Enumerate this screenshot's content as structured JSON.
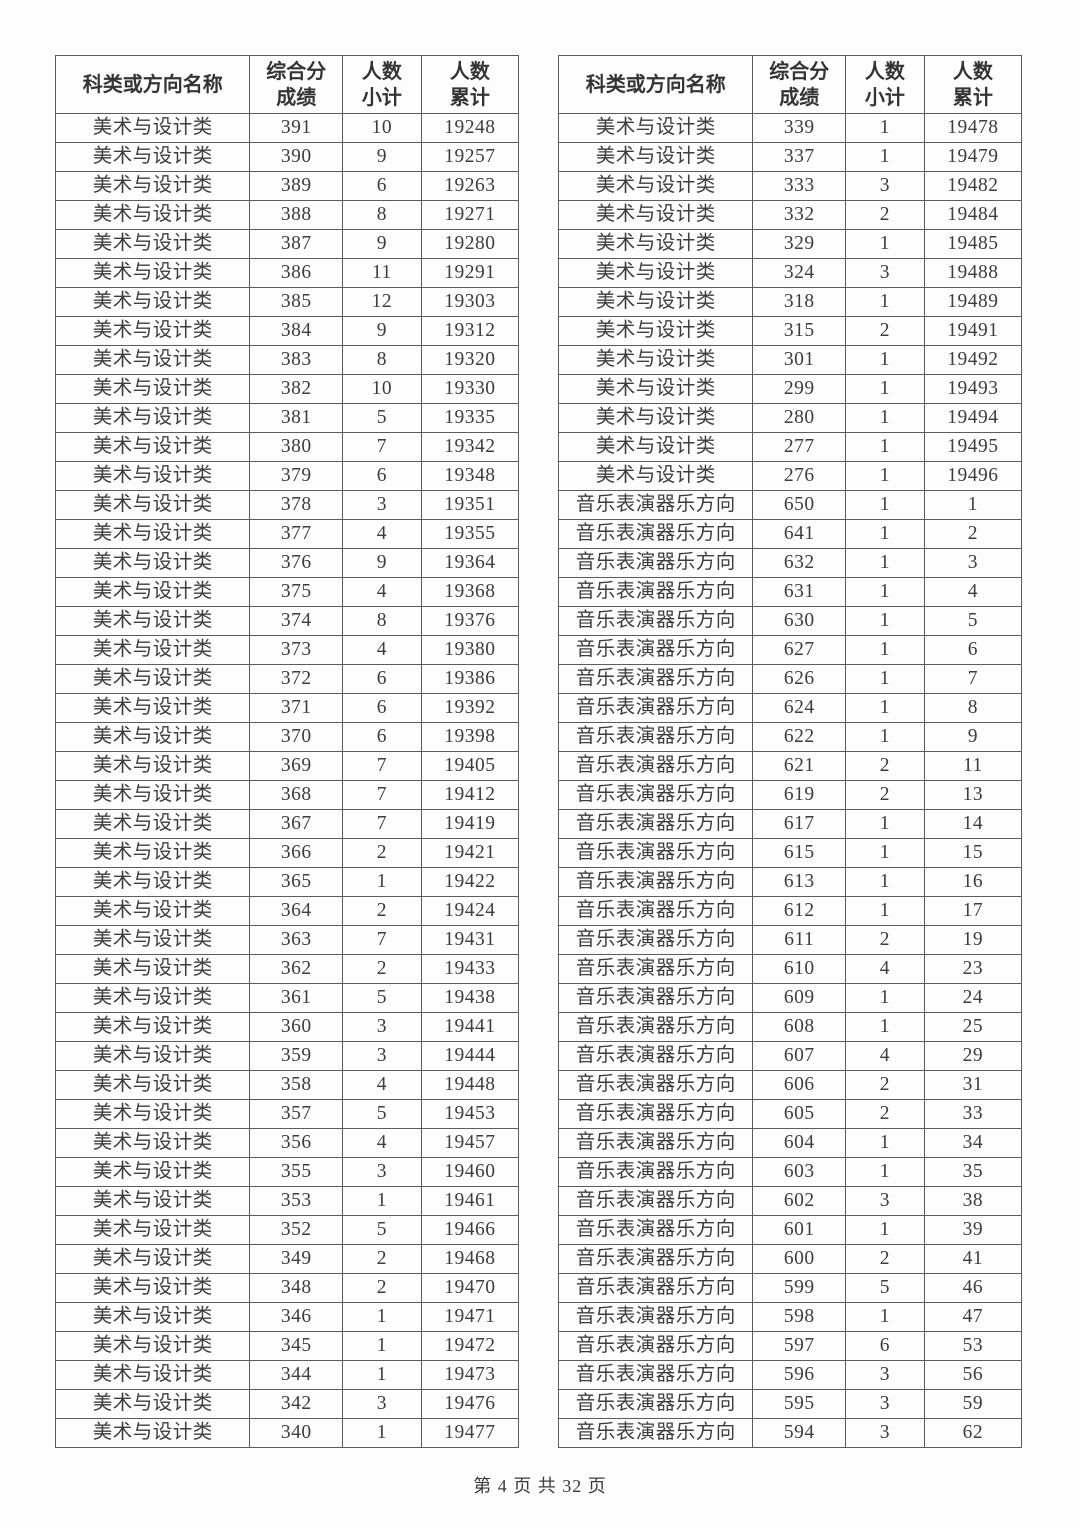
{
  "table_header": {
    "category": "科类或方向名称",
    "score_line1": "综合分",
    "score_line2": "成绩",
    "subtotal_line1": "人数",
    "subtotal_line2": "小计",
    "cumulative_line1": "人数",
    "cumulative_line2": "累计"
  },
  "tables": {
    "left": {
      "rows": [
        [
          "美术与设计类",
          "391",
          "10",
          "19248"
        ],
        [
          "美术与设计类",
          "390",
          "9",
          "19257"
        ],
        [
          "美术与设计类",
          "389",
          "6",
          "19263"
        ],
        [
          "美术与设计类",
          "388",
          "8",
          "19271"
        ],
        [
          "美术与设计类",
          "387",
          "9",
          "19280"
        ],
        [
          "美术与设计类",
          "386",
          "11",
          "19291"
        ],
        [
          "美术与设计类",
          "385",
          "12",
          "19303"
        ],
        [
          "美术与设计类",
          "384",
          "9",
          "19312"
        ],
        [
          "美术与设计类",
          "383",
          "8",
          "19320"
        ],
        [
          "美术与设计类",
          "382",
          "10",
          "19330"
        ],
        [
          "美术与设计类",
          "381",
          "5",
          "19335"
        ],
        [
          "美术与设计类",
          "380",
          "7",
          "19342"
        ],
        [
          "美术与设计类",
          "379",
          "6",
          "19348"
        ],
        [
          "美术与设计类",
          "378",
          "3",
          "19351"
        ],
        [
          "美术与设计类",
          "377",
          "4",
          "19355"
        ],
        [
          "美术与设计类",
          "376",
          "9",
          "19364"
        ],
        [
          "美术与设计类",
          "375",
          "4",
          "19368"
        ],
        [
          "美术与设计类",
          "374",
          "8",
          "19376"
        ],
        [
          "美术与设计类",
          "373",
          "4",
          "19380"
        ],
        [
          "美术与设计类",
          "372",
          "6",
          "19386"
        ],
        [
          "美术与设计类",
          "371",
          "6",
          "19392"
        ],
        [
          "美术与设计类",
          "370",
          "6",
          "19398"
        ],
        [
          "美术与设计类",
          "369",
          "7",
          "19405"
        ],
        [
          "美术与设计类",
          "368",
          "7",
          "19412"
        ],
        [
          "美术与设计类",
          "367",
          "7",
          "19419"
        ],
        [
          "美术与设计类",
          "366",
          "2",
          "19421"
        ],
        [
          "美术与设计类",
          "365",
          "1",
          "19422"
        ],
        [
          "美术与设计类",
          "364",
          "2",
          "19424"
        ],
        [
          "美术与设计类",
          "363",
          "7",
          "19431"
        ],
        [
          "美术与设计类",
          "362",
          "2",
          "19433"
        ],
        [
          "美术与设计类",
          "361",
          "5",
          "19438"
        ],
        [
          "美术与设计类",
          "360",
          "3",
          "19441"
        ],
        [
          "美术与设计类",
          "359",
          "3",
          "19444"
        ],
        [
          "美术与设计类",
          "358",
          "4",
          "19448"
        ],
        [
          "美术与设计类",
          "357",
          "5",
          "19453"
        ],
        [
          "美术与设计类",
          "356",
          "4",
          "19457"
        ],
        [
          "美术与设计类",
          "355",
          "3",
          "19460"
        ],
        [
          "美术与设计类",
          "353",
          "1",
          "19461"
        ],
        [
          "美术与设计类",
          "352",
          "5",
          "19466"
        ],
        [
          "美术与设计类",
          "349",
          "2",
          "19468"
        ],
        [
          "美术与设计类",
          "348",
          "2",
          "19470"
        ],
        [
          "美术与设计类",
          "346",
          "1",
          "19471"
        ],
        [
          "美术与设计类",
          "345",
          "1",
          "19472"
        ],
        [
          "美术与设计类",
          "344",
          "1",
          "19473"
        ],
        [
          "美术与设计类",
          "342",
          "3",
          "19476"
        ],
        [
          "美术与设计类",
          "340",
          "1",
          "19477"
        ]
      ]
    },
    "right": {
      "rows": [
        [
          "美术与设计类",
          "339",
          "1",
          "19478"
        ],
        [
          "美术与设计类",
          "337",
          "1",
          "19479"
        ],
        [
          "美术与设计类",
          "333",
          "3",
          "19482"
        ],
        [
          "美术与设计类",
          "332",
          "2",
          "19484"
        ],
        [
          "美术与设计类",
          "329",
          "1",
          "19485"
        ],
        [
          "美术与设计类",
          "324",
          "3",
          "19488"
        ],
        [
          "美术与设计类",
          "318",
          "1",
          "19489"
        ],
        [
          "美术与设计类",
          "315",
          "2",
          "19491"
        ],
        [
          "美术与设计类",
          "301",
          "1",
          "19492"
        ],
        [
          "美术与设计类",
          "299",
          "1",
          "19493"
        ],
        [
          "美术与设计类",
          "280",
          "1",
          "19494"
        ],
        [
          "美术与设计类",
          "277",
          "1",
          "19495"
        ],
        [
          "美术与设计类",
          "276",
          "1",
          "19496"
        ],
        [
          "音乐表演器乐方向",
          "650",
          "1",
          "1"
        ],
        [
          "音乐表演器乐方向",
          "641",
          "1",
          "2"
        ],
        [
          "音乐表演器乐方向",
          "632",
          "1",
          "3"
        ],
        [
          "音乐表演器乐方向",
          "631",
          "1",
          "4"
        ],
        [
          "音乐表演器乐方向",
          "630",
          "1",
          "5"
        ],
        [
          "音乐表演器乐方向",
          "627",
          "1",
          "6"
        ],
        [
          "音乐表演器乐方向",
          "626",
          "1",
          "7"
        ],
        [
          "音乐表演器乐方向",
          "624",
          "1",
          "8"
        ],
        [
          "音乐表演器乐方向",
          "622",
          "1",
          "9"
        ],
        [
          "音乐表演器乐方向",
          "621",
          "2",
          "11"
        ],
        [
          "音乐表演器乐方向",
          "619",
          "2",
          "13"
        ],
        [
          "音乐表演器乐方向",
          "617",
          "1",
          "14"
        ],
        [
          "音乐表演器乐方向",
          "615",
          "1",
          "15"
        ],
        [
          "音乐表演器乐方向",
          "613",
          "1",
          "16"
        ],
        [
          "音乐表演器乐方向",
          "612",
          "1",
          "17"
        ],
        [
          "音乐表演器乐方向",
          "611",
          "2",
          "19"
        ],
        [
          "音乐表演器乐方向",
          "610",
          "4",
          "23"
        ],
        [
          "音乐表演器乐方向",
          "609",
          "1",
          "24"
        ],
        [
          "音乐表演器乐方向",
          "608",
          "1",
          "25"
        ],
        [
          "音乐表演器乐方向",
          "607",
          "4",
          "29"
        ],
        [
          "音乐表演器乐方向",
          "606",
          "2",
          "31"
        ],
        [
          "音乐表演器乐方向",
          "605",
          "2",
          "33"
        ],
        [
          "音乐表演器乐方向",
          "604",
          "1",
          "34"
        ],
        [
          "音乐表演器乐方向",
          "603",
          "1",
          "35"
        ],
        [
          "音乐表演器乐方向",
          "602",
          "3",
          "38"
        ],
        [
          "音乐表演器乐方向",
          "601",
          "1",
          "39"
        ],
        [
          "音乐表演器乐方向",
          "600",
          "2",
          "41"
        ],
        [
          "音乐表演器乐方向",
          "599",
          "5",
          "46"
        ],
        [
          "音乐表演器乐方向",
          "598",
          "1",
          "47"
        ],
        [
          "音乐表演器乐方向",
          "597",
          "6",
          "53"
        ],
        [
          "音乐表演器乐方向",
          "596",
          "3",
          "56"
        ],
        [
          "音乐表演器乐方向",
          "595",
          "3",
          "59"
        ],
        [
          "音乐表演器乐方向",
          "594",
          "3",
          "62"
        ]
      ]
    }
  },
  "footer": {
    "text": "第 4 页 共 32 页"
  }
}
